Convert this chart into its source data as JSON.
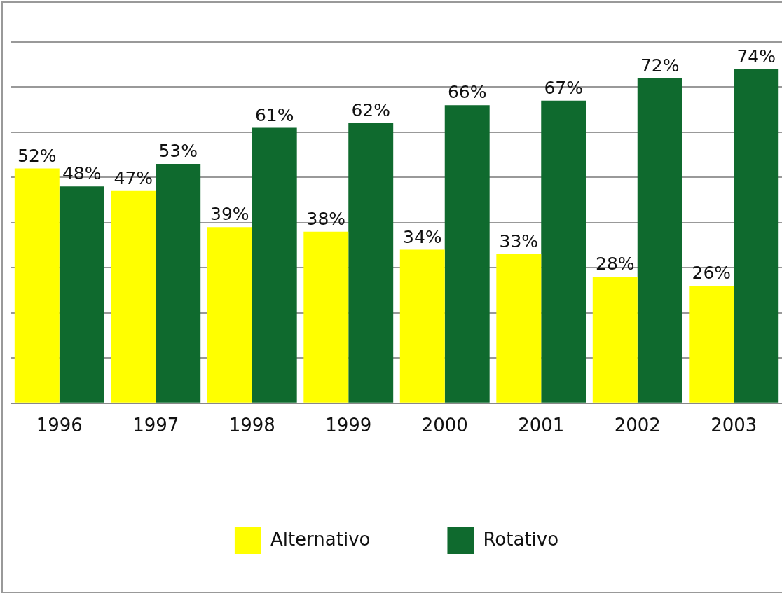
{
  "chart_data": {
    "type": "bar",
    "categories": [
      "1996",
      "1997",
      "1998",
      "1999",
      "2000",
      "2001",
      "2002",
      "2003"
    ],
    "series": [
      {
        "name": "Alternativo",
        "color": "#ffff00",
        "values": [
          52,
          47,
          39,
          38,
          34,
          33,
          28,
          26
        ],
        "value_labels": [
          "52%",
          "47%",
          "39%",
          "38%",
          "34%",
          "33%",
          "28%",
          "26%"
        ]
      },
      {
        "name": "Rotativo",
        "color": "#0f6a2e",
        "values": [
          48,
          53,
          61,
          62,
          66,
          67,
          72,
          74
        ],
        "value_labels": [
          "48%",
          "53%",
          "61%",
          "62%",
          "66%",
          "67%",
          "72%",
          "74%"
        ]
      }
    ],
    "ylim": [
      0,
      80
    ],
    "yticks": [
      {
        "value": 0,
        "label": null
      },
      {
        "value": 10,
        "label": null
      },
      {
        "value": 20,
        "label": null
      },
      {
        "value": 30,
        "label": null
      },
      {
        "value": 40,
        "label": null
      },
      {
        "value": 50,
        "label": null
      },
      {
        "value": 60,
        "label": null
      },
      {
        "value": 70,
        "label": null
      },
      {
        "value": 80,
        "label": null
      }
    ],
    "grid": "y",
    "legend": "bottom",
    "tick_labels": "x"
  }
}
